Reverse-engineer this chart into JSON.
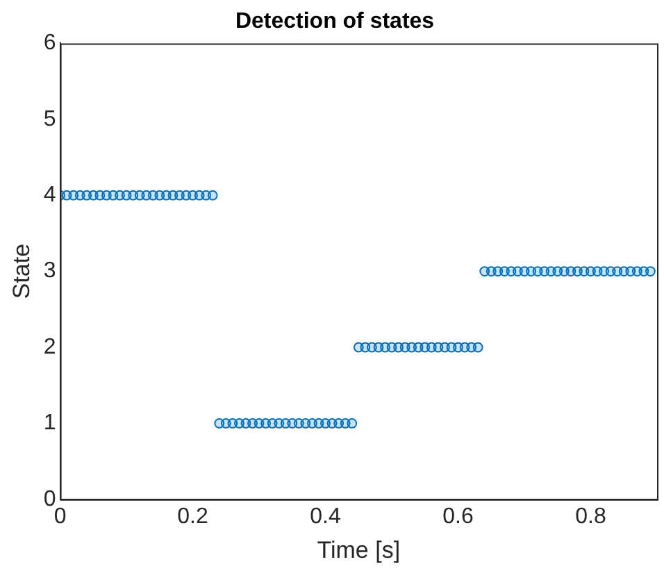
{
  "chart_data": {
    "type": "scatter",
    "title": "Detection of states",
    "xlabel": "Time [s]",
    "ylabel": "State",
    "x": [
      0,
      0.01,
      0.02,
      0.03,
      0.04,
      0.05,
      0.06,
      0.07,
      0.08,
      0.09,
      0.1,
      0.11,
      0.12,
      0.13,
      0.14,
      0.15,
      0.16,
      0.17,
      0.18,
      0.19,
      0.2,
      0.21,
      0.22,
      0.23,
      0.24,
      0.25,
      0.26,
      0.27,
      0.28,
      0.29,
      0.3,
      0.31,
      0.32,
      0.33,
      0.34,
      0.35,
      0.36,
      0.37,
      0.38,
      0.39,
      0.4,
      0.41,
      0.42,
      0.43,
      0.44,
      0.45,
      0.46,
      0.47,
      0.48,
      0.49,
      0.5,
      0.51,
      0.52,
      0.53,
      0.54,
      0.55,
      0.56,
      0.57,
      0.58,
      0.59,
      0.6,
      0.61,
      0.62,
      0.63,
      0.64,
      0.65,
      0.66,
      0.67,
      0.68,
      0.69,
      0.7,
      0.71,
      0.72,
      0.73,
      0.74,
      0.75,
      0.76,
      0.77,
      0.78,
      0.79,
      0.8,
      0.81,
      0.82,
      0.83,
      0.84,
      0.85,
      0.86,
      0.87,
      0.88,
      0.89
    ],
    "series": [
      {
        "color": "#0072bd",
        "values": [
          4,
          4,
          4,
          4,
          4,
          4,
          4,
          4,
          4,
          4,
          4,
          4,
          4,
          4,
          4,
          4,
          4,
          4,
          4,
          4,
          4,
          4,
          4,
          4,
          1,
          1,
          1,
          1,
          1,
          1,
          1,
          1,
          1,
          1,
          1,
          1,
          1,
          1,
          1,
          1,
          1,
          1,
          1,
          1,
          1,
          2,
          2,
          2,
          2,
          2,
          2,
          2,
          2,
          2,
          2,
          2,
          2,
          2,
          2,
          2,
          2,
          2,
          2,
          2,
          3,
          3,
          3,
          3,
          3,
          3,
          3,
          3,
          3,
          3,
          3,
          3,
          3,
          3,
          3,
          3,
          3,
          3,
          3,
          3,
          3,
          3,
          3,
          3,
          3,
          3
        ]
      }
    ],
    "xlim": [
      0,
      0.9
    ],
    "xticks": [
      0,
      0.2,
      0.4,
      0.6,
      0.8
    ],
    "ylim": [
      0,
      6
    ],
    "yticks": [
      0,
      1,
      2,
      3,
      4,
      5,
      6
    ],
    "grid": false,
    "legend": false,
    "marker": "circle"
  }
}
